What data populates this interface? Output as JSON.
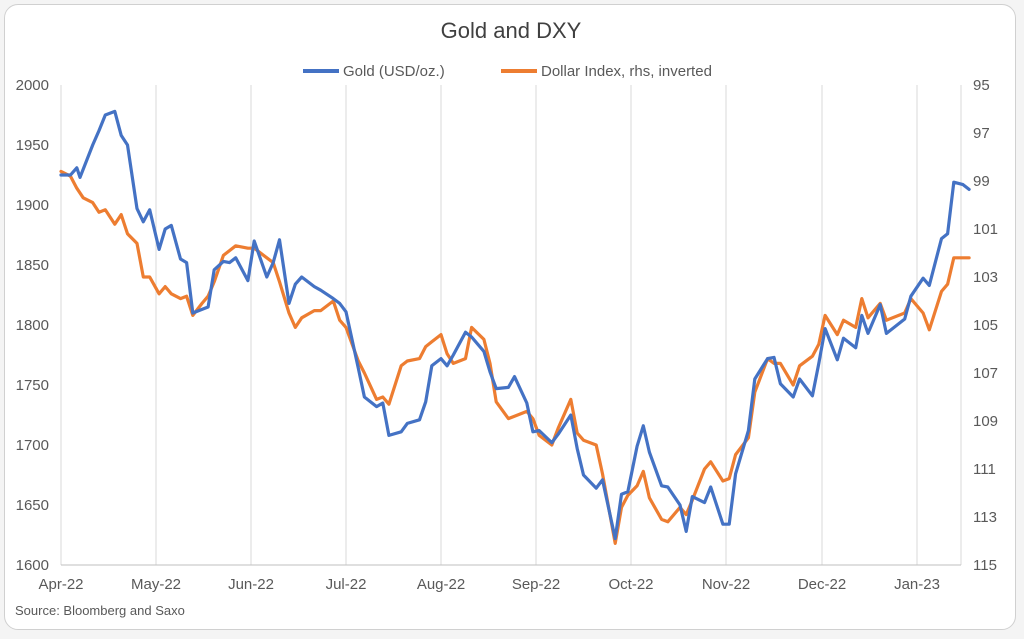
{
  "chart_data": {
    "type": "line",
    "title": "Gold and DXY",
    "source": "Source: Bloomberg and Saxo",
    "x_ticks": [
      "Apr-22",
      "May-22",
      "Jun-22",
      "Jul-22",
      "Aug-22",
      "Sep-22",
      "Oct-22",
      "Nov-22",
      "Dec-22",
      "Jan-23"
    ],
    "y_left": {
      "min": 1600,
      "max": 2000,
      "step": 50,
      "ticks": [
        "1600",
        "1650",
        "1700",
        "1750",
        "1800",
        "1850",
        "1900",
        "1950",
        "2000"
      ]
    },
    "y_right": {
      "min": 95,
      "max": 115,
      "inverted": true,
      "ticks": [
        "95",
        "97",
        "99",
        "101",
        "103",
        "105",
        "107",
        "109",
        "111",
        "113",
        "115"
      ]
    },
    "grid": "vertical",
    "legend_position": "top-center",
    "series": [
      {
        "name": "Gold (USD/oz.)",
        "axis": "left",
        "color": "#4472c4",
        "points": [
          [
            "2022-04-01",
            1925
          ],
          [
            "2022-04-04",
            1925
          ],
          [
            "2022-04-06",
            1931
          ],
          [
            "2022-04-07",
            1923
          ],
          [
            "2022-04-11",
            1950
          ],
          [
            "2022-04-13",
            1962
          ],
          [
            "2022-04-15",
            1975
          ],
          [
            "2022-04-18",
            1978
          ],
          [
            "2022-04-20",
            1958
          ],
          [
            "2022-04-22",
            1950
          ],
          [
            "2022-04-25",
            1897
          ],
          [
            "2022-04-27",
            1886
          ],
          [
            "2022-04-29",
            1896
          ],
          [
            "2022-05-02",
            1863
          ],
          [
            "2022-05-04",
            1880
          ],
          [
            "2022-05-06",
            1883
          ],
          [
            "2022-05-09",
            1855
          ],
          [
            "2022-05-11",
            1852
          ],
          [
            "2022-05-13",
            1810
          ],
          [
            "2022-05-16",
            1813
          ],
          [
            "2022-05-18",
            1815
          ],
          [
            "2022-05-20",
            1846
          ],
          [
            "2022-05-23",
            1853
          ],
          [
            "2022-05-25",
            1852
          ],
          [
            "2022-05-27",
            1856
          ],
          [
            "2022-05-31",
            1837
          ],
          [
            "2022-06-02",
            1870
          ],
          [
            "2022-06-06",
            1840
          ],
          [
            "2022-06-08",
            1852
          ],
          [
            "2022-06-10",
            1871
          ],
          [
            "2022-06-13",
            1818
          ],
          [
            "2022-06-15",
            1834
          ],
          [
            "2022-06-17",
            1840
          ],
          [
            "2022-06-21",
            1832
          ],
          [
            "2022-06-23",
            1829
          ],
          [
            "2022-06-27",
            1822
          ],
          [
            "2022-06-29",
            1818
          ],
          [
            "2022-07-01",
            1811
          ],
          [
            "2022-07-05",
            1764
          ],
          [
            "2022-07-07",
            1740
          ],
          [
            "2022-07-11",
            1732
          ],
          [
            "2022-07-13",
            1735
          ],
          [
            "2022-07-15",
            1708
          ],
          [
            "2022-07-19",
            1711
          ],
          [
            "2022-07-21",
            1718
          ],
          [
            "2022-07-25",
            1721
          ],
          [
            "2022-07-27",
            1736
          ],
          [
            "2022-07-29",
            1766
          ],
          [
            "2022-08-01",
            1772
          ],
          [
            "2022-08-03",
            1766
          ],
          [
            "2022-08-05",
            1775
          ],
          [
            "2022-08-09",
            1794
          ],
          [
            "2022-08-11",
            1790
          ],
          [
            "2022-08-15",
            1778
          ],
          [
            "2022-08-17",
            1761
          ],
          [
            "2022-08-19",
            1747
          ],
          [
            "2022-08-23",
            1748
          ],
          [
            "2022-08-25",
            1757
          ],
          [
            "2022-08-29",
            1735
          ],
          [
            "2022-08-31",
            1711
          ],
          [
            "2022-09-02",
            1712
          ],
          [
            "2022-09-06",
            1702
          ],
          [
            "2022-09-08",
            1709
          ],
          [
            "2022-09-12",
            1725
          ],
          [
            "2022-09-14",
            1697
          ],
          [
            "2022-09-16",
            1675
          ],
          [
            "2022-09-20",
            1664
          ],
          [
            "2022-09-22",
            1671
          ],
          [
            "2022-09-26",
            1622
          ],
          [
            "2022-09-28",
            1659
          ],
          [
            "2022-09-30",
            1661
          ],
          [
            "2022-10-03",
            1699
          ],
          [
            "2022-10-05",
            1716
          ],
          [
            "2022-10-07",
            1694
          ],
          [
            "2022-10-11",
            1666
          ],
          [
            "2022-10-13",
            1665
          ],
          [
            "2022-10-17",
            1650
          ],
          [
            "2022-10-19",
            1628
          ],
          [
            "2022-10-21",
            1657
          ],
          [
            "2022-10-25",
            1652
          ],
          [
            "2022-10-27",
            1665
          ],
          [
            "2022-10-31",
            1634
          ],
          [
            "2022-11-02",
            1634
          ],
          [
            "2022-11-04",
            1676
          ],
          [
            "2022-11-08",
            1712
          ],
          [
            "2022-11-10",
            1755
          ],
          [
            "2022-11-14",
            1772
          ],
          [
            "2022-11-16",
            1773
          ],
          [
            "2022-11-18",
            1751
          ],
          [
            "2022-11-22",
            1740
          ],
          [
            "2022-11-24",
            1755
          ],
          [
            "2022-11-28",
            1741
          ],
          [
            "2022-11-30",
            1768
          ],
          [
            "2022-12-02",
            1797
          ],
          [
            "2022-12-06",
            1771
          ],
          [
            "2022-12-08",
            1789
          ],
          [
            "2022-12-12",
            1781
          ],
          [
            "2022-12-14",
            1808
          ],
          [
            "2022-12-16",
            1793
          ],
          [
            "2022-12-20",
            1817
          ],
          [
            "2022-12-22",
            1793
          ],
          [
            "2022-12-28",
            1805
          ],
          [
            "2022-12-30",
            1824
          ],
          [
            "2023-01-03",
            1839
          ],
          [
            "2023-01-05",
            1833
          ],
          [
            "2023-01-09",
            1872
          ],
          [
            "2023-01-11",
            1876
          ],
          [
            "2023-01-13",
            1919
          ],
          [
            "2023-01-16",
            1917
          ],
          [
            "2023-01-18",
            1913
          ]
        ]
      },
      {
        "name": "Dollar Index, rhs, inverted",
        "axis": "right",
        "color": "#ed7d31",
        "points": [
          [
            "2022-04-01",
            98.6
          ],
          [
            "2022-04-04",
            98.8
          ],
          [
            "2022-04-06",
            99.3
          ],
          [
            "2022-04-08",
            99.7
          ],
          [
            "2022-04-11",
            99.9
          ],
          [
            "2022-04-13",
            100.3
          ],
          [
            "2022-04-15",
            100.2
          ],
          [
            "2022-04-18",
            100.8
          ],
          [
            "2022-04-20",
            100.4
          ],
          [
            "2022-04-22",
            101.2
          ],
          [
            "2022-04-25",
            101.6
          ],
          [
            "2022-04-27",
            103.0
          ],
          [
            "2022-04-29",
            103.0
          ],
          [
            "2022-05-02",
            103.7
          ],
          [
            "2022-05-04",
            103.4
          ],
          [
            "2022-05-06",
            103.7
          ],
          [
            "2022-05-09",
            103.9
          ],
          [
            "2022-05-11",
            103.8
          ],
          [
            "2022-05-13",
            104.6
          ],
          [
            "2022-05-16",
            104.1
          ],
          [
            "2022-05-18",
            103.8
          ],
          [
            "2022-05-20",
            103.2
          ],
          [
            "2022-05-23",
            102.1
          ],
          [
            "2022-05-25",
            101.9
          ],
          [
            "2022-05-27",
            101.7
          ],
          [
            "2022-05-31",
            101.8
          ],
          [
            "2022-06-02",
            101.8
          ],
          [
            "2022-06-06",
            102.2
          ],
          [
            "2022-06-08",
            102.4
          ],
          [
            "2022-06-10",
            103.2
          ],
          [
            "2022-06-13",
            104.5
          ],
          [
            "2022-06-15",
            105.1
          ],
          [
            "2022-06-17",
            104.7
          ],
          [
            "2022-06-21",
            104.4
          ],
          [
            "2022-06-23",
            104.4
          ],
          [
            "2022-06-27",
            104.0
          ],
          [
            "2022-06-29",
            104.8
          ],
          [
            "2022-07-01",
            105.1
          ],
          [
            "2022-07-05",
            106.5
          ],
          [
            "2022-07-07",
            107.0
          ],
          [
            "2022-07-11",
            108.1
          ],
          [
            "2022-07-13",
            108.0
          ],
          [
            "2022-07-15",
            108.3
          ],
          [
            "2022-07-19",
            106.7
          ],
          [
            "2022-07-21",
            106.5
          ],
          [
            "2022-07-25",
            106.4
          ],
          [
            "2022-07-27",
            105.9
          ],
          [
            "2022-07-29",
            105.7
          ],
          [
            "2022-08-01",
            105.4
          ],
          [
            "2022-08-03",
            106.2
          ],
          [
            "2022-08-05",
            106.6
          ],
          [
            "2022-08-09",
            106.4
          ],
          [
            "2022-08-11",
            105.1
          ],
          [
            "2022-08-15",
            105.6
          ],
          [
            "2022-08-17",
            106.6
          ],
          [
            "2022-08-19",
            108.2
          ],
          [
            "2022-08-23",
            108.9
          ],
          [
            "2022-08-25",
            108.8
          ],
          [
            "2022-08-29",
            108.6
          ],
          [
            "2022-08-31",
            108.9
          ],
          [
            "2022-09-02",
            109.6
          ],
          [
            "2022-09-06",
            110.0
          ],
          [
            "2022-09-08",
            109.3
          ],
          [
            "2022-09-12",
            108.1
          ],
          [
            "2022-09-14",
            109.5
          ],
          [
            "2022-09-16",
            109.8
          ],
          [
            "2022-09-20",
            110.0
          ],
          [
            "2022-09-22",
            111.2
          ],
          [
            "2022-09-26",
            114.1
          ],
          [
            "2022-09-28",
            112.6
          ],
          [
            "2022-09-30",
            112.1
          ],
          [
            "2022-10-03",
            111.7
          ],
          [
            "2022-10-05",
            111.1
          ],
          [
            "2022-10-07",
            112.2
          ],
          [
            "2022-10-11",
            113.1
          ],
          [
            "2022-10-13",
            113.2
          ],
          [
            "2022-10-17",
            112.6
          ],
          [
            "2022-10-19",
            112.9
          ],
          [
            "2022-10-21",
            112.3
          ],
          [
            "2022-10-25",
            111.0
          ],
          [
            "2022-10-27",
            110.7
          ],
          [
            "2022-10-31",
            111.5
          ],
          [
            "2022-11-02",
            111.4
          ],
          [
            "2022-11-04",
            110.4
          ],
          [
            "2022-11-08",
            109.7
          ],
          [
            "2022-11-10",
            107.8
          ],
          [
            "2022-11-14",
            106.4
          ],
          [
            "2022-11-16",
            106.6
          ],
          [
            "2022-11-18",
            106.6
          ],
          [
            "2022-11-22",
            107.5
          ],
          [
            "2022-11-24",
            106.7
          ],
          [
            "2022-11-28",
            106.3
          ],
          [
            "2022-11-30",
            105.8
          ],
          [
            "2022-12-02",
            104.6
          ],
          [
            "2022-12-06",
            105.4
          ],
          [
            "2022-12-08",
            104.8
          ],
          [
            "2022-12-12",
            105.1
          ],
          [
            "2022-12-14",
            103.9
          ],
          [
            "2022-12-16",
            104.7
          ],
          [
            "2022-12-20",
            104.1
          ],
          [
            "2022-12-22",
            104.8
          ],
          [
            "2022-12-28",
            104.5
          ],
          [
            "2022-12-30",
            103.9
          ],
          [
            "2023-01-03",
            104.5
          ],
          [
            "2023-01-05",
            105.2
          ],
          [
            "2023-01-09",
            103.6
          ],
          [
            "2023-01-11",
            103.3
          ],
          [
            "2023-01-13",
            102.2
          ],
          [
            "2023-01-16",
            102.2
          ],
          [
            "2023-01-18",
            102.2
          ]
        ]
      }
    ]
  }
}
